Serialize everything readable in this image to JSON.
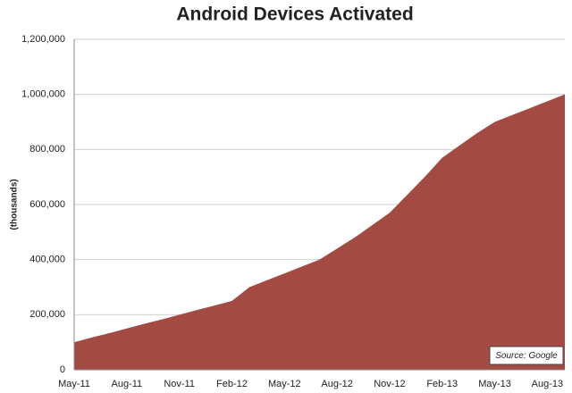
{
  "chart_data": {
    "type": "area",
    "title": "Android Devices Activated",
    "y_label": "(thousands)",
    "annotation": "Source: Google",
    "color": "#a34a42",
    "grid": true,
    "categories": [
      "May-11",
      null,
      null,
      "Aug-11",
      null,
      null,
      "Nov-11",
      null,
      null,
      "Feb-12",
      null,
      null,
      "May-12",
      null,
      null,
      "Aug-12",
      null,
      null,
      "Nov-12",
      null,
      null,
      "Feb-13",
      null,
      null,
      "May-13",
      null,
      null,
      "Aug-13",
      null
    ],
    "values": [
      100000,
      117000,
      133000,
      150000,
      167000,
      183000,
      200000,
      217000,
      233000,
      250000,
      300000,
      325000,
      350000,
      375000,
      400000,
      440000,
      480000,
      525000,
      570000,
      635000,
      700000,
      770000,
      815000,
      860000,
      900000,
      925000,
      950000,
      975000,
      1000000
    ],
    "ylim": [
      0,
      1200000
    ],
    "yticks": [
      0,
      {
        "value": 200000,
        "label": "200,000"
      },
      {
        "value": 400000,
        "label": "400,000"
      },
      {
        "value": 600000,
        "label": "600,000"
      },
      {
        "value": 800000,
        "label": "800,000"
      },
      {
        "value": 1000000,
        "label": "1,000,000"
      },
      {
        "value": 1200000,
        "label": "1,200,000"
      }
    ]
  }
}
